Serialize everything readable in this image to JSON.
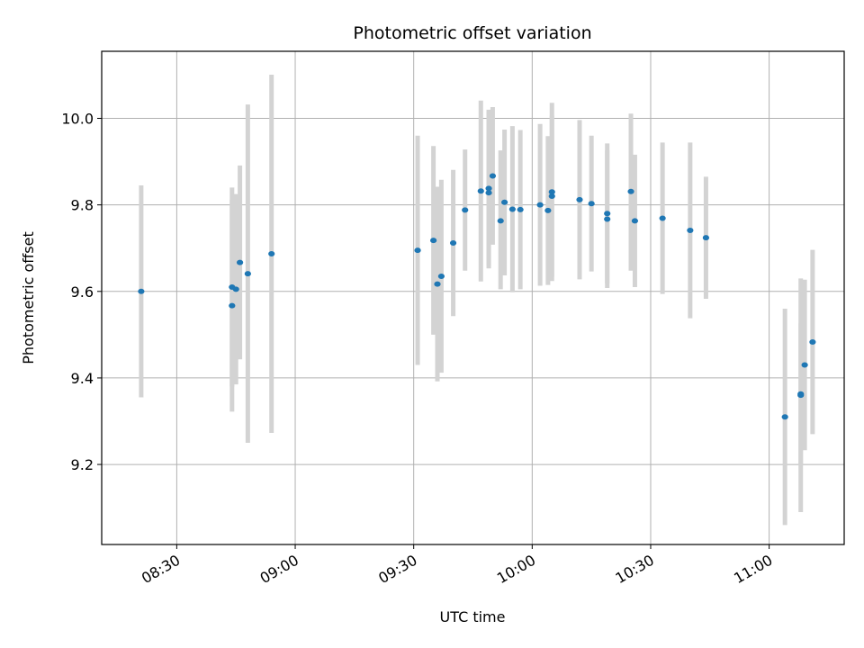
{
  "chart_data": {
    "type": "scatter",
    "title": "Photometric offset variation",
    "xlabel": "UTC time",
    "ylabel": "Photometric offset",
    "xlim": [
      "08:11",
      "11:19"
    ],
    "ylim": [
      9.015,
      10.155
    ],
    "x_ticks": [
      "08:30",
      "09:00",
      "09:30",
      "10:00",
      "10:30",
      "11:00"
    ],
    "y_ticks": [
      "9.2",
      "9.4",
      "9.6",
      "9.8",
      "10.0"
    ],
    "grid": true,
    "colors": {
      "point": "#1f77b4",
      "errorbar": "#d3d3d3",
      "grid": "#b0b0b0",
      "axes": "#000000"
    },
    "points": [
      {
        "t": "08:21",
        "y": 9.6,
        "lo": 9.355,
        "hi": 9.845
      },
      {
        "t": "08:44",
        "y": 9.567,
        "lo": 9.322,
        "hi": 9.812
      },
      {
        "t": "08:44",
        "y": 9.61,
        "lo": 9.38,
        "hi": 9.84
      },
      {
        "t": "08:45",
        "y": 9.605,
        "lo": 9.385,
        "hi": 9.825
      },
      {
        "t": "08:46",
        "y": 9.667,
        "lo": 9.443,
        "hi": 9.891
      },
      {
        "t": "08:48",
        "y": 9.641,
        "lo": 9.25,
        "hi": 10.032
      },
      {
        "t": "08:54",
        "y": 9.687,
        "lo": 9.273,
        "hi": 10.101
      },
      {
        "t": "09:31",
        "y": 9.695,
        "lo": 9.43,
        "hi": 9.96
      },
      {
        "t": "09:35",
        "y": 9.718,
        "lo": 9.5,
        "hi": 9.936
      },
      {
        "t": "09:36",
        "y": 9.617,
        "lo": 9.392,
        "hi": 9.842
      },
      {
        "t": "09:37",
        "y": 9.635,
        "lo": 9.412,
        "hi": 9.858
      },
      {
        "t": "09:40",
        "y": 9.712,
        "lo": 9.543,
        "hi": 9.881
      },
      {
        "t": "09:43",
        "y": 9.788,
        "lo": 9.648,
        "hi": 9.928
      },
      {
        "t": "09:47",
        "y": 9.832,
        "lo": 9.623,
        "hi": 10.041
      },
      {
        "t": "09:49",
        "y": 9.828,
        "lo": 9.653,
        "hi": 10.016
      },
      {
        "t": "09:49",
        "y": 9.838,
        "lo": 9.66,
        "hi": 10.02
      },
      {
        "t": "09:50",
        "y": 9.867,
        "lo": 9.708,
        "hi": 10.026
      },
      {
        "t": "09:52",
        "y": 9.763,
        "lo": 9.605,
        "hi": 9.926
      },
      {
        "t": "09:53",
        "y": 9.806,
        "lo": 9.637,
        "hi": 9.974
      },
      {
        "t": "09:55",
        "y": 9.79,
        "lo": 9.598,
        "hi": 9.982
      },
      {
        "t": "09:57",
        "y": 9.789,
        "lo": 9.605,
        "hi": 9.973
      },
      {
        "t": "10:02",
        "y": 9.8,
        "lo": 9.613,
        "hi": 9.987
      },
      {
        "t": "10:04",
        "y": 9.787,
        "lo": 9.615,
        "hi": 9.959
      },
      {
        "t": "10:05",
        "y": 9.82,
        "lo": 9.634,
        "hi": 10.006
      },
      {
        "t": "10:05",
        "y": 9.83,
        "lo": 9.624,
        "hi": 10.036
      },
      {
        "t": "10:12",
        "y": 9.812,
        "lo": 9.628,
        "hi": 9.996
      },
      {
        "t": "10:15",
        "y": 9.803,
        "lo": 9.646,
        "hi": 9.96
      },
      {
        "t": "10:19",
        "y": 9.767,
        "lo": 9.608,
        "hi": 9.926
      },
      {
        "t": "10:19",
        "y": 9.78,
        "lo": 9.618,
        "hi": 9.942
      },
      {
        "t": "10:25",
        "y": 9.831,
        "lo": 9.648,
        "hi": 10.011
      },
      {
        "t": "10:26",
        "y": 9.763,
        "lo": 9.61,
        "hi": 9.916
      },
      {
        "t": "10:33",
        "y": 9.769,
        "lo": 9.594,
        "hi": 9.944
      },
      {
        "t": "10:40",
        "y": 9.741,
        "lo": 9.538,
        "hi": 9.944
      },
      {
        "t": "10:44",
        "y": 9.724,
        "lo": 9.583,
        "hi": 9.865
      },
      {
        "t": "11:04",
        "y": 9.31,
        "lo": 9.06,
        "hi": 9.56
      },
      {
        "t": "11:08",
        "y": 9.363,
        "lo": 9.2,
        "hi": 9.526
      },
      {
        "t": "11:08",
        "y": 9.36,
        "lo": 9.09,
        "hi": 9.63
      },
      {
        "t": "11:09",
        "y": 9.43,
        "lo": 9.233,
        "hi": 9.627
      },
      {
        "t": "11:11",
        "y": 9.483,
        "lo": 9.27,
        "hi": 9.696
      }
    ]
  }
}
